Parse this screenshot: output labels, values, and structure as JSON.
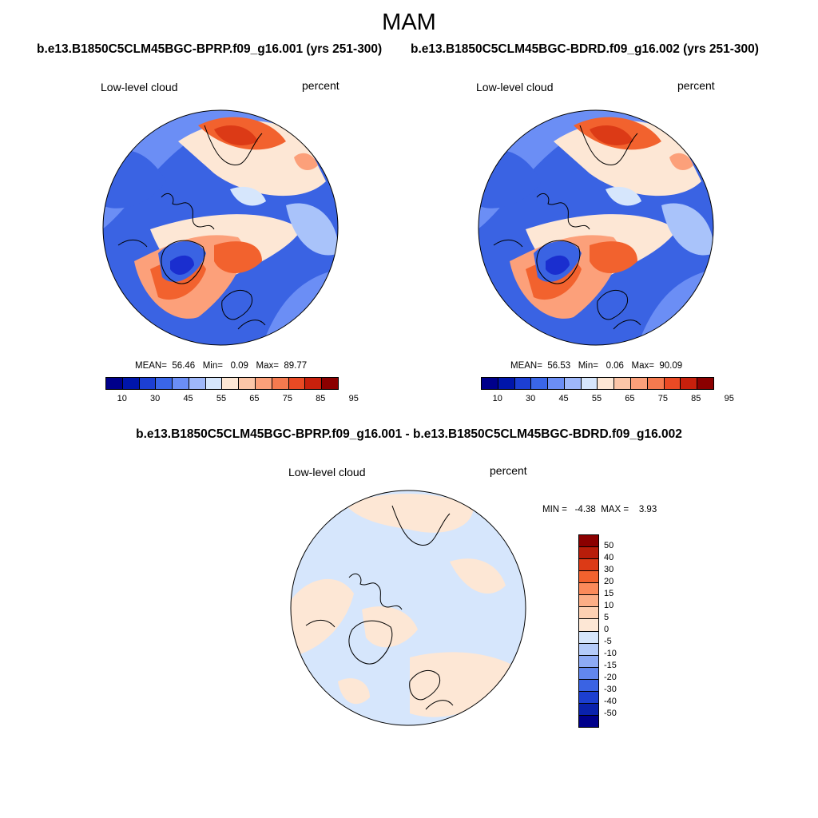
{
  "title": "MAM",
  "panels": [
    {
      "case_title": "b.e13.B1850C5CLM45BGC-BPRP.f09_g16.001 (yrs 251-300)",
      "variable": "Low-level cloud",
      "units": "percent",
      "stats": {
        "mean_label": "MEAN=",
        "mean": "56.46",
        "min_label": "Min=",
        "min": "0.09",
        "max_label": "Max=",
        "max": "89.77"
      }
    },
    {
      "case_title": "b.e13.B1850C5CLM45BGC-BDRD.f09_g16.002 (yrs 251-300)",
      "variable": "Low-level cloud",
      "units": "percent",
      "stats": {
        "mean_label": "MEAN=",
        "mean": "56.53",
        "min_label": "Min=",
        "min": "0.06",
        "max_label": "Max=",
        "max": "90.09"
      }
    }
  ],
  "difference": {
    "title": "b.e13.B1850C5CLM45BGC-BPRP.f09_g16.001 - b.e13.B1850C5CLM45BGC-BDRD.f09_g16.002",
    "variable": "Low-level cloud",
    "units": "percent",
    "stats": {
      "min_label": "MIN =",
      "min": "-4.38",
      "max_label": "MAX =",
      "max": "3.93"
    }
  },
  "colorbar": {
    "ticks": [
      "10",
      "30",
      "45",
      "55",
      "65",
      "75",
      "85",
      "95"
    ],
    "colors": [
      "#00008b",
      "#0015ab",
      "#1c3fd3",
      "#3a66e8",
      "#6b8ef5",
      "#9fb8fa",
      "#d6e6fc",
      "#fde7d5",
      "#fcc6a8",
      "#fca07a",
      "#f57a4f",
      "#ea4a24",
      "#c8200c",
      "#8b0000"
    ]
  },
  "diff_colorbar": {
    "ticks": [
      "50",
      "40",
      "30",
      "20",
      "15",
      "10",
      "5",
      "0",
      "-5",
      "-10",
      "-15",
      "-20",
      "-30",
      "-40",
      "-50"
    ],
    "colors": [
      "#8b0000",
      "#b81d0a",
      "#dc3a16",
      "#f2622e",
      "#fb8a5a",
      "#fcae86",
      "#fdd0b2",
      "#fde7d5",
      "#d6e6fc",
      "#b4cbfa",
      "#8daaf5",
      "#6287ee",
      "#3a63e3",
      "#1c3fd0",
      "#0a22ad",
      "#00008b"
    ]
  },
  "map_colors": {
    "deep_blue": "#1a2ecf",
    "blue": "#3a63e3",
    "mid_blue": "#6b8ef5",
    "light_blue": "#a9c3fa",
    "pale_blue": "#d6e6fc",
    "pale_orange": "#fde7d5",
    "orange": "#fca07a",
    "red_orange": "#f2622e",
    "red": "#dc3a16"
  }
}
